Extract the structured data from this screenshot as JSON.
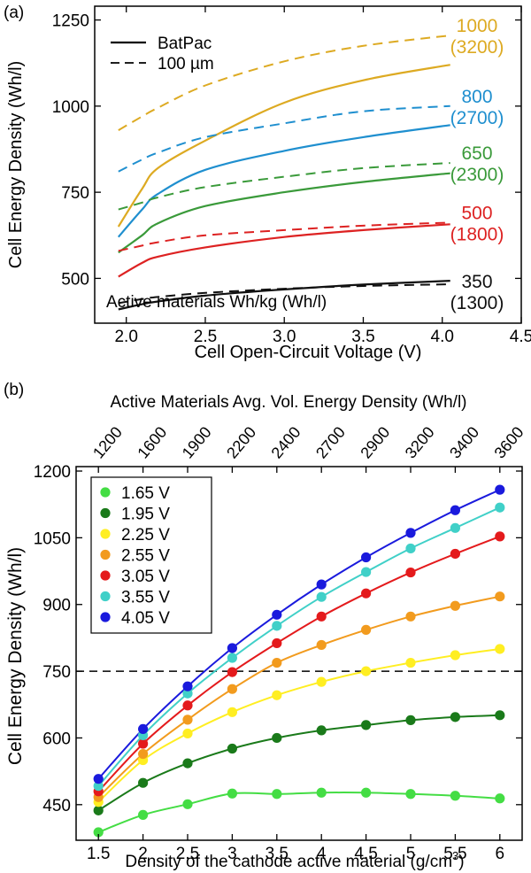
{
  "chart_data": [
    {
      "panel": "(a)",
      "type": "line",
      "xlabel": "Cell Open-Circuit Voltage (V)",
      "ylabel": "Cell Energy Density (Wh/l)",
      "xlim": [
        1.8,
        4.5
      ],
      "ylim": [
        370,
        1290
      ],
      "xticks": [
        2.0,
        2.5,
        3.0,
        3.5,
        4.0,
        4.5
      ],
      "xtick_labels": [
        "2.0",
        "2.5",
        "3.0",
        "3.5",
        "4.0",
        "4.5"
      ],
      "yticks": [
        500,
        750,
        1000,
        1250
      ],
      "ytick_labels": [
        "500",
        "750",
        "1000",
        "1250"
      ],
      "grid": false,
      "legend_position": "top-left",
      "legend": [
        {
          "label": "BatPac",
          "style": "solid"
        },
        {
          "label": "100 µm",
          "style": "dashed"
        }
      ],
      "annotation": "Active materials Wh/kg (Wh/l)",
      "x": [
        1.95,
        2.1,
        2.2,
        2.5,
        3.0,
        3.5,
        4.05
      ],
      "groups": [
        {
          "label": "1000",
          "sublabel": "(3200)",
          "color": "#DDAA22",
          "solid": [
            650,
            760,
            820,
            900,
            1010,
            1075,
            1120
          ],
          "dashed": [
            930,
            970,
            995,
            1060,
            1130,
            1175,
            1205
          ]
        },
        {
          "label": "800",
          "sublabel": "(2700)",
          "color": "#1F8FCF",
          "solid": [
            620,
            700,
            745,
            815,
            870,
            910,
            945
          ],
          "dashed": [
            810,
            845,
            865,
            910,
            950,
            985,
            1000
          ]
        },
        {
          "label": "650",
          "sublabel": "(2300)",
          "color": "#3A9A3A",
          "solid": [
            575,
            625,
            660,
            710,
            750,
            780,
            805
          ],
          "dashed": [
            700,
            720,
            735,
            765,
            795,
            820,
            835
          ]
        },
        {
          "label": "500",
          "sublabel": "(1800)",
          "color": "#DD2222",
          "solid": [
            505,
            545,
            563,
            590,
            620,
            640,
            657
          ],
          "dashed": [
            580,
            595,
            605,
            625,
            640,
            653,
            662
          ]
        },
        {
          "label": "350",
          "sublabel": "(1300)",
          "color": "#111111",
          "solid": [
            410,
            425,
            433,
            450,
            468,
            482,
            493
          ],
          "dashed": [
            428,
            440,
            446,
            458,
            470,
            478,
            483
          ]
        }
      ]
    },
    {
      "panel": "(b)",
      "type": "line",
      "xlabel": "Density of the cathode active material (g/cm",
      "xlabel_sup": "3",
      "xlabel_end": ")",
      "ylabel": "Cell Energy Density (Wh/l)",
      "top_xlabel": "Active Materials Avg. Vol. Energy Density (Wh/l)",
      "top_xtick_labels": [
        "1200",
        "1600",
        "1900",
        "2200",
        "2400",
        "2700",
        "2900",
        "3200",
        "3400",
        "3600"
      ],
      "xlim": [
        1.25,
        6.25
      ],
      "ylim": [
        370,
        1210
      ],
      "xticks": [
        1.5,
        2,
        2.5,
        3,
        3.5,
        4,
        4.5,
        5,
        5.5,
        6
      ],
      "xtick_labels": [
        "1.5",
        "2",
        "2.5",
        "3",
        "3.5",
        "4",
        "4.5",
        "5",
        "5.5",
        "6"
      ],
      "yticks": [
        450,
        600,
        750,
        900,
        1050,
        1200
      ],
      "ytick_labels": [
        "450",
        "600",
        "750",
        "900",
        "1050",
        "1200"
      ],
      "reference_line": 750,
      "grid": false,
      "legend_position": "top-left",
      "x": [
        1.5,
        2,
        2.5,
        3,
        3.5,
        4,
        4.5,
        5,
        5.5,
        6
      ],
      "series": [
        {
          "name": "1.65 V",
          "color": "#44DD44",
          "values": [
            388,
            427,
            451,
            475,
            474,
            477,
            477,
            474,
            470,
            464
          ]
        },
        {
          "name": "1.95 V",
          "color": "#1A7A1A",
          "values": [
            437,
            499,
            543,
            576,
            600,
            617,
            629,
            640,
            647,
            651
          ]
        },
        {
          "name": "2.25 V",
          "color": "#FFEE22",
          "values": [
            456,
            550,
            610,
            658,
            696,
            726,
            750,
            769,
            786,
            800
          ]
        },
        {
          "name": "2.55 V",
          "color": "#F29B1E",
          "values": [
            467,
            564,
            641,
            710,
            769,
            809,
            843,
            873,
            897,
            918
          ]
        },
        {
          "name": "3.05 V",
          "color": "#E41A1C",
          "values": [
            480,
            587,
            673,
            748,
            813,
            873,
            925,
            972,
            1014,
            1053
          ]
        },
        {
          "name": "3.55 V",
          "color": "#40D0C8",
          "values": [
            492,
            606,
            700,
            780,
            852,
            917,
            973,
            1026,
            1072,
            1118
          ]
        },
        {
          "name": "4.05 V",
          "color": "#1A1ADD",
          "values": [
            508,
            620,
            716,
            802,
            877,
            945,
            1006,
            1061,
            1112,
            1158
          ]
        }
      ]
    }
  ]
}
